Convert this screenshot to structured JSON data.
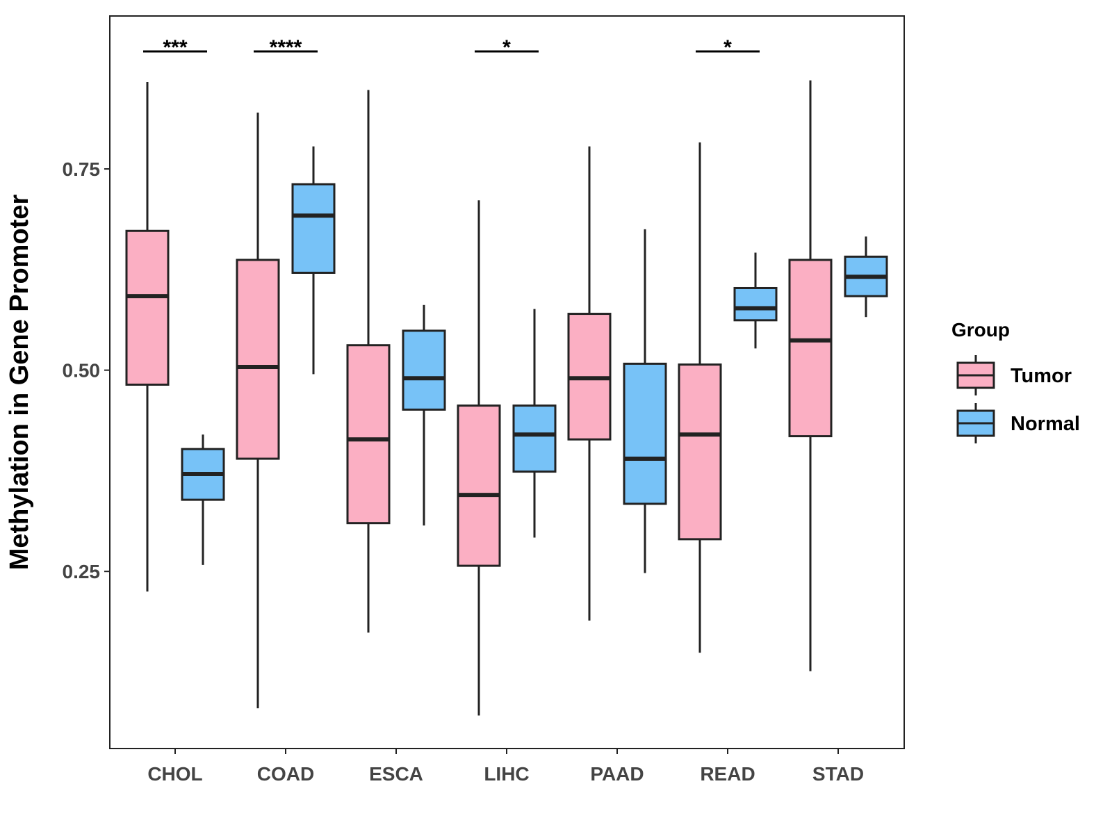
{
  "chart_data": {
    "type": "boxplot",
    "title": "",
    "xlabel": "",
    "ylabel": "Methylation in Gene Promoter",
    "ylim": [
      0.03,
      0.94
    ],
    "yticks": [
      0.25,
      0.5,
      0.75
    ],
    "ytick_labels": [
      "0.25",
      "0.50",
      "0.75"
    ],
    "categories": [
      "CHOL",
      "COAD",
      "ESCA",
      "LIHC",
      "PAAD",
      "READ",
      "STAD"
    ],
    "colors": {
      "Tumor": "#FBAFC3",
      "Normal": "#77C2F7",
      "outline": "#222222"
    },
    "legend": {
      "title": "Group",
      "position": "right",
      "entries": [
        {
          "name": "Tumor",
          "series": "Tumor"
        },
        {
          "name": "Normal",
          "series": "Normal"
        }
      ]
    },
    "series": [
      {
        "name": "Tumor",
        "boxes": [
          {
            "category": "CHOL",
            "min": 0.225,
            "q1": 0.482,
            "median": 0.592,
            "q3": 0.673,
            "max": 0.858
          },
          {
            "category": "COAD",
            "min": 0.08,
            "q1": 0.39,
            "median": 0.504,
            "q3": 0.637,
            "max": 0.82
          },
          {
            "category": "ESCA",
            "min": 0.174,
            "q1": 0.31,
            "median": 0.414,
            "q3": 0.531,
            "max": 0.848
          },
          {
            "category": "LIHC",
            "min": 0.071,
            "q1": 0.257,
            "median": 0.345,
            "q3": 0.456,
            "max": 0.711
          },
          {
            "category": "PAAD",
            "min": 0.189,
            "q1": 0.414,
            "median": 0.49,
            "q3": 0.57,
            "max": 0.778
          },
          {
            "category": "READ",
            "min": 0.149,
            "q1": 0.29,
            "median": 0.42,
            "q3": 0.507,
            "max": 0.783
          },
          {
            "category": "STAD",
            "min": 0.126,
            "q1": 0.418,
            "median": 0.537,
            "q3": 0.637,
            "max": 0.86
          }
        ]
      },
      {
        "name": "Normal",
        "boxes": [
          {
            "category": "CHOL",
            "min": 0.258,
            "q1": 0.339,
            "median": 0.371,
            "q3": 0.402,
            "max": 0.42
          },
          {
            "category": "COAD",
            "min": 0.495,
            "q1": 0.621,
            "median": 0.692,
            "q3": 0.731,
            "max": 0.778
          },
          {
            "category": "ESCA",
            "min": 0.307,
            "q1": 0.451,
            "median": 0.49,
            "q3": 0.549,
            "max": 0.581
          },
          {
            "category": "LIHC",
            "min": 0.292,
            "q1": 0.374,
            "median": 0.42,
            "q3": 0.456,
            "max": 0.576
          },
          {
            "category": "PAAD",
            "min": 0.248,
            "q1": 0.334,
            "median": 0.39,
            "q3": 0.508,
            "max": 0.675
          },
          {
            "category": "READ",
            "min": 0.527,
            "q1": 0.562,
            "median": 0.577,
            "q3": 0.602,
            "max": 0.646
          },
          {
            "category": "STAD",
            "min": 0.566,
            "q1": 0.592,
            "median": 0.616,
            "q3": 0.641,
            "max": 0.666
          }
        ]
      }
    ],
    "annotations": [
      {
        "category": "CHOL",
        "label": "***"
      },
      {
        "category": "COAD",
        "label": "****"
      },
      {
        "category": "LIHC",
        "label": "*"
      },
      {
        "category": "READ",
        "label": "*"
      }
    ]
  }
}
